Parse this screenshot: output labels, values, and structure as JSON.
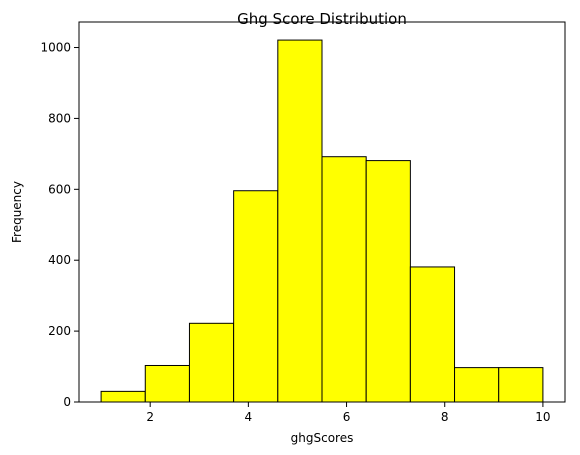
{
  "chart_data": {
    "type": "bar",
    "title": "Ghg Score Distribution",
    "xlabel": "ghgScores",
    "ylabel": "Frequency",
    "bin_edges": [
      1.0,
      1.9,
      2.8,
      3.7,
      4.6,
      5.5,
      6.4,
      7.3,
      8.2,
      9.1,
      10.0
    ],
    "values": [
      30,
      103,
      222,
      596,
      1021,
      692,
      681,
      381,
      97,
      97
    ],
    "xlim": [
      0.55,
      10.45
    ],
    "ylim": [
      0,
      1072
    ],
    "x_ticks": [
      2,
      4,
      6,
      8,
      10
    ],
    "y_ticks": [
      0,
      200,
      400,
      600,
      800,
      1000
    ],
    "bar_color": "#ffff00",
    "edge_color": "#000000",
    "grid": false
  }
}
